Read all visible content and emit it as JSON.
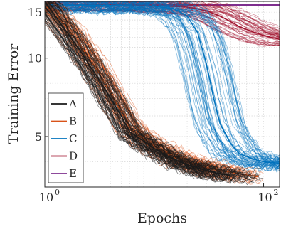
{
  "chart_data": {
    "type": "line",
    "xlabel": "Epochs",
    "ylabel": "Training Error",
    "x_scale": "log",
    "y_scale": "log",
    "xlim": [
      1,
      140
    ],
    "ylim": [
      3.2,
      16.5
    ],
    "grid": true,
    "legend_position": "left",
    "x_ticks": [
      {
        "value": 1,
        "label": "10",
        "exponent": "0"
      },
      {
        "value": 100,
        "label": "10",
        "exponent": "2"
      }
    ],
    "y_ticks": [
      {
        "value": 5,
        "label": "5"
      },
      {
        "value": 10,
        "label": "10"
      },
      {
        "value": 15,
        "label": "15"
      }
    ],
    "series": [
      {
        "name": "A",
        "color": "#1a1a1a",
        "x": [
          1,
          1.5,
          2,
          3,
          4,
          5,
          6,
          8,
          10,
          15,
          20,
          30,
          40,
          50
        ],
        "y": [
          16.5,
          13.0,
          11.0,
          8.5,
          7.0,
          6.0,
          5.2,
          4.8,
          4.5,
          4.1,
          3.9,
          3.7,
          3.6,
          3.55
        ]
      },
      {
        "name": "B",
        "color": "#d95319",
        "x": [
          1,
          1.5,
          2,
          3,
          4,
          5,
          6,
          8,
          10,
          15,
          20,
          30,
          40,
          60,
          90
        ],
        "y": [
          16.0,
          13.5,
          11.5,
          9.0,
          7.3,
          6.2,
          5.4,
          4.9,
          4.6,
          4.2,
          4.0,
          3.8,
          3.7,
          3.6,
          3.5
        ]
      },
      {
        "name": "C",
        "color": "#0072bd",
        "x": [
          1,
          5,
          10,
          15,
          20,
          25,
          30,
          35,
          40,
          50,
          60,
          80,
          100,
          140
        ],
        "y": [
          16.0,
          15.9,
          15.8,
          15.5,
          14.5,
          12.5,
          9.5,
          7.0,
          5.6,
          4.7,
          4.3,
          4.1,
          4.0,
          3.95
        ]
      },
      {
        "name": "D",
        "color": "#a2142f",
        "x": [
          1,
          5,
          10,
          20,
          30,
          40,
          50,
          60,
          80,
          100,
          140
        ],
        "y": [
          16.0,
          16.0,
          15.9,
          15.7,
          15.2,
          14.5,
          13.8,
          13.2,
          12.6,
          12.2,
          11.8
        ]
      },
      {
        "name": "E",
        "color": "#7e2f8e",
        "x": [
          1,
          10,
          50,
          100,
          140
        ],
        "y": [
          16.0,
          16.0,
          16.0,
          16.0,
          16.0
        ]
      }
    ]
  }
}
